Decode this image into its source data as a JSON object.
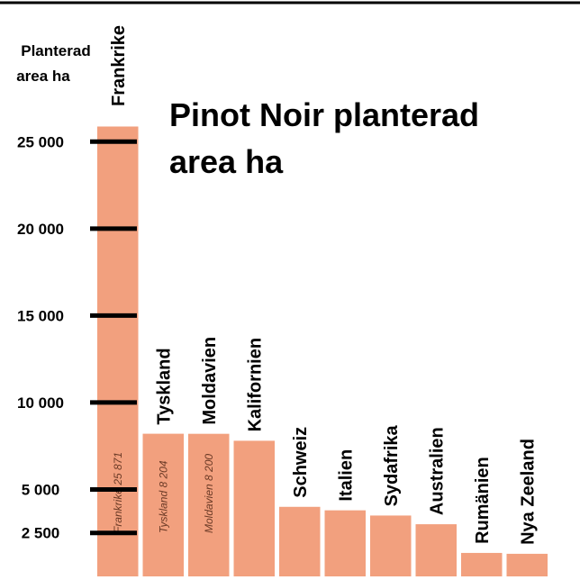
{
  "chart_data": {
    "type": "bar",
    "title": "Pinot Noir planterad area ha",
    "y_label": "Planterad area ha",
    "categories": [
      "Frankrike",
      "Tyskland",
      "Moldavien",
      "Kalifornien",
      "Schweiz",
      "Italien",
      "Sydafrika",
      "Australien",
      "Rumänien",
      "Nya Zeeland"
    ],
    "values": [
      25871,
      8204,
      8200,
      7800,
      4000,
      3800,
      3500,
      3000,
      1350,
      1300
    ],
    "value_labels": [
      "Frankrike 25 871",
      "Tyskland 8 204",
      "Moldavien 8 200",
      null,
      null,
      null,
      null,
      null,
      null,
      null
    ],
    "color": "#f2a07e",
    "ylim": [
      0,
      26000
    ],
    "yticks": [
      {
        "value": 2500,
        "label": "2 500"
      },
      {
        "value": 5000,
        "label": "5 000"
      },
      {
        "value": 10000,
        "label": "10 000"
      },
      {
        "value": 15000,
        "label": "15 000"
      },
      {
        "value": 20000,
        "label": "20 000"
      },
      {
        "value": 25000,
        "label": "25 000"
      }
    ],
    "grid": false
  }
}
